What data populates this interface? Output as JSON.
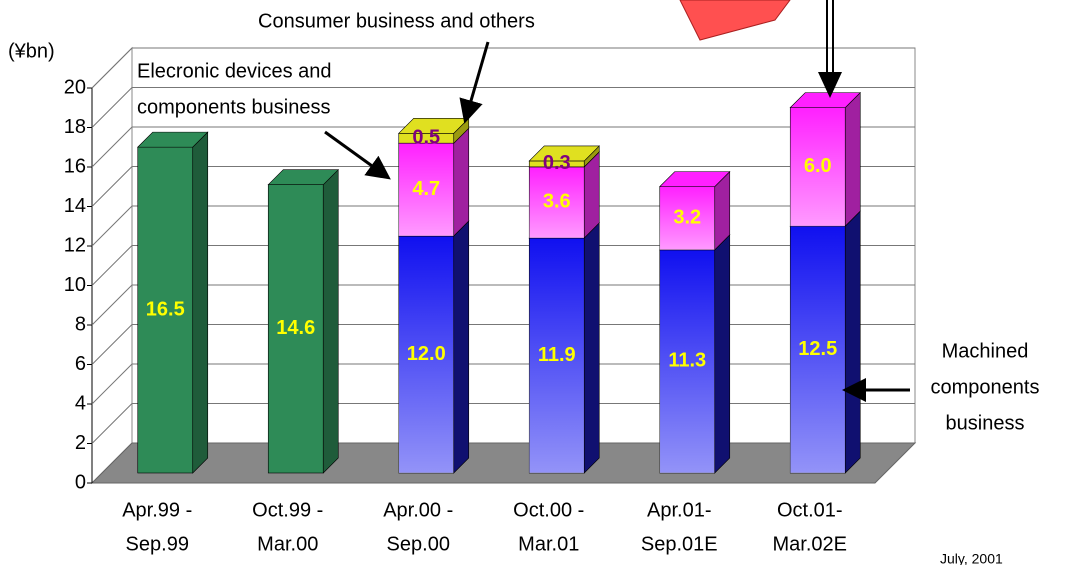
{
  "chart_data": {
    "type": "bar3d_stacked",
    "y_label": "(¥bn)",
    "categories": [
      [
        "Apr.99 -",
        "Sep.99"
      ],
      [
        "Oct.99 -",
        "Mar.00"
      ],
      [
        "Apr.00 -",
        "Sep.00"
      ],
      [
        "Oct.00 -",
        "Mar.01"
      ],
      [
        "Apr.01-",
        "Sep.01E"
      ],
      [
        "Oct.01-",
        "Mar.02E"
      ]
    ],
    "series": [
      {
        "color": "#2e8b57",
        "side": "#1f5c3a",
        "label_color": "#ffff00",
        "gradient": false,
        "values": [
          16.5,
          14.6,
          null,
          null,
          null,
          null
        ],
        "value_labels": [
          "16.5",
          "14.6",
          null,
          null,
          null,
          null
        ]
      },
      {
        "name": [
          "Machined",
          "components",
          "business"
        ],
        "color": "#1010f0",
        "side": "#101070",
        "label_color": "#ffff00",
        "gradient": true,
        "values": [
          null,
          null,
          12.0,
          11.9,
          11.3,
          12.5
        ],
        "value_labels": [
          null,
          null,
          "12.0",
          "11.9",
          "11.3",
          "12.5"
        ]
      },
      {
        "name": [
          "Elecronic devices and",
          "components business"
        ],
        "color": "#ff20ff",
        "side": "#a020a0",
        "label_color": "#ffff00",
        "gradient": true,
        "values": [
          null,
          null,
          4.7,
          3.6,
          3.2,
          6.0
        ],
        "value_labels": [
          null,
          null,
          "4.7",
          "3.6",
          "3.2",
          "6.0"
        ]
      },
      {
        "name": [
          "Consumer business and others"
        ],
        "color": "#e0e020",
        "side": "#9a9a10",
        "label_color": "#800080",
        "gradient": false,
        "values": [
          null,
          null,
          0.5,
          0.3,
          null,
          null
        ],
        "value_labels": [
          null,
          null,
          "0.5",
          "0.3",
          null,
          null
        ]
      }
    ],
    "footnote": "July, 2001",
    "ylim": [
      0,
      20
    ],
    "yticks": [
      0,
      2,
      4,
      6,
      8,
      10,
      12,
      14,
      16,
      18,
      20
    ],
    "grid": true
  }
}
